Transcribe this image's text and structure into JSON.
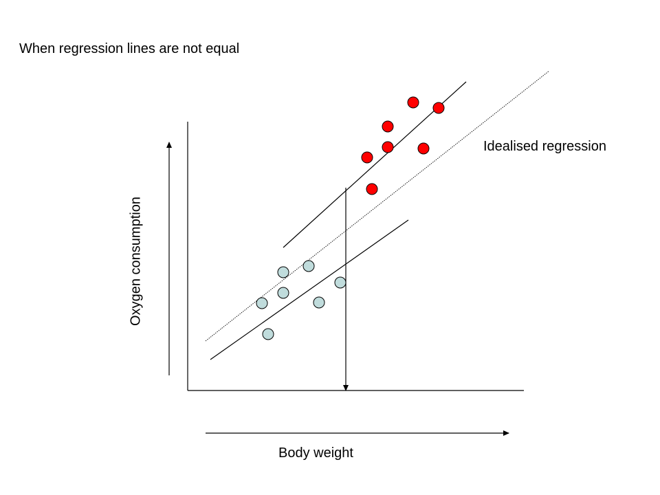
{
  "title": "When regression lines are not equal",
  "idealised_label": "Idealised regression",
  "x_arrow_label": "Body weight",
  "y_arrow_label": "Oxygen consumption",
  "colors": {
    "group_high": "#ff0000",
    "group_low": "#c0dcdc",
    "stroke": "#000000"
  },
  "chart_data": {
    "type": "scatter",
    "series": [
      {
        "color": "#ff0000",
        "points": [
          [
            601,
            149
          ],
          [
            638,
            157
          ],
          [
            564,
            184
          ],
          [
            564,
            214
          ],
          [
            616,
            216
          ],
          [
            534,
            229
          ],
          [
            541,
            275
          ]
        ]
      },
      {
        "color": "#c0dcdc",
        "points": [
          [
            412,
            396
          ],
          [
            449,
            387
          ],
          [
            495,
            411
          ],
          [
            381,
            441
          ],
          [
            412,
            426
          ],
          [
            464,
            440
          ],
          [
            390,
            486
          ]
        ]
      }
    ],
    "lines": [
      {
        "style": "solid",
        "from": [
          412,
          360
        ],
        "to": [
          678,
          119
        ]
      },
      {
        "style": "dotted",
        "from": [
          299,
          496
        ],
        "to": [
          799,
          103
        ]
      },
      {
        "style": "solid",
        "from": [
          306,
          523
        ],
        "to": [
          594,
          320
        ]
      }
    ]
  }
}
